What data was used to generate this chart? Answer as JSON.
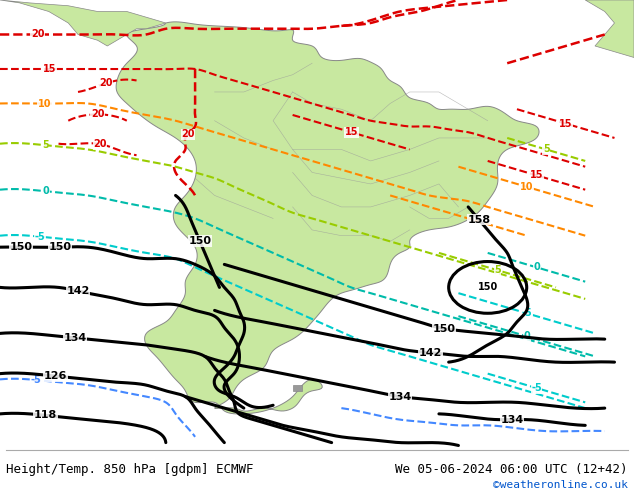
{
  "title_left": "Height/Temp. 850 hPa [gdpm] ECMWF",
  "title_right": "We 05-06-2024 06:00 UTC (12+42)",
  "copyright": "©weatheronline.co.uk",
  "ocean_color": "#d0d0d8",
  "land_color": "#c8e8a0",
  "land_edge_color": "#888888",
  "figsize": [
    6.34,
    4.9
  ],
  "dpi": 100,
  "lon_min": -90,
  "lon_max": -25,
  "lat_min": -62,
  "lat_max": 16
}
